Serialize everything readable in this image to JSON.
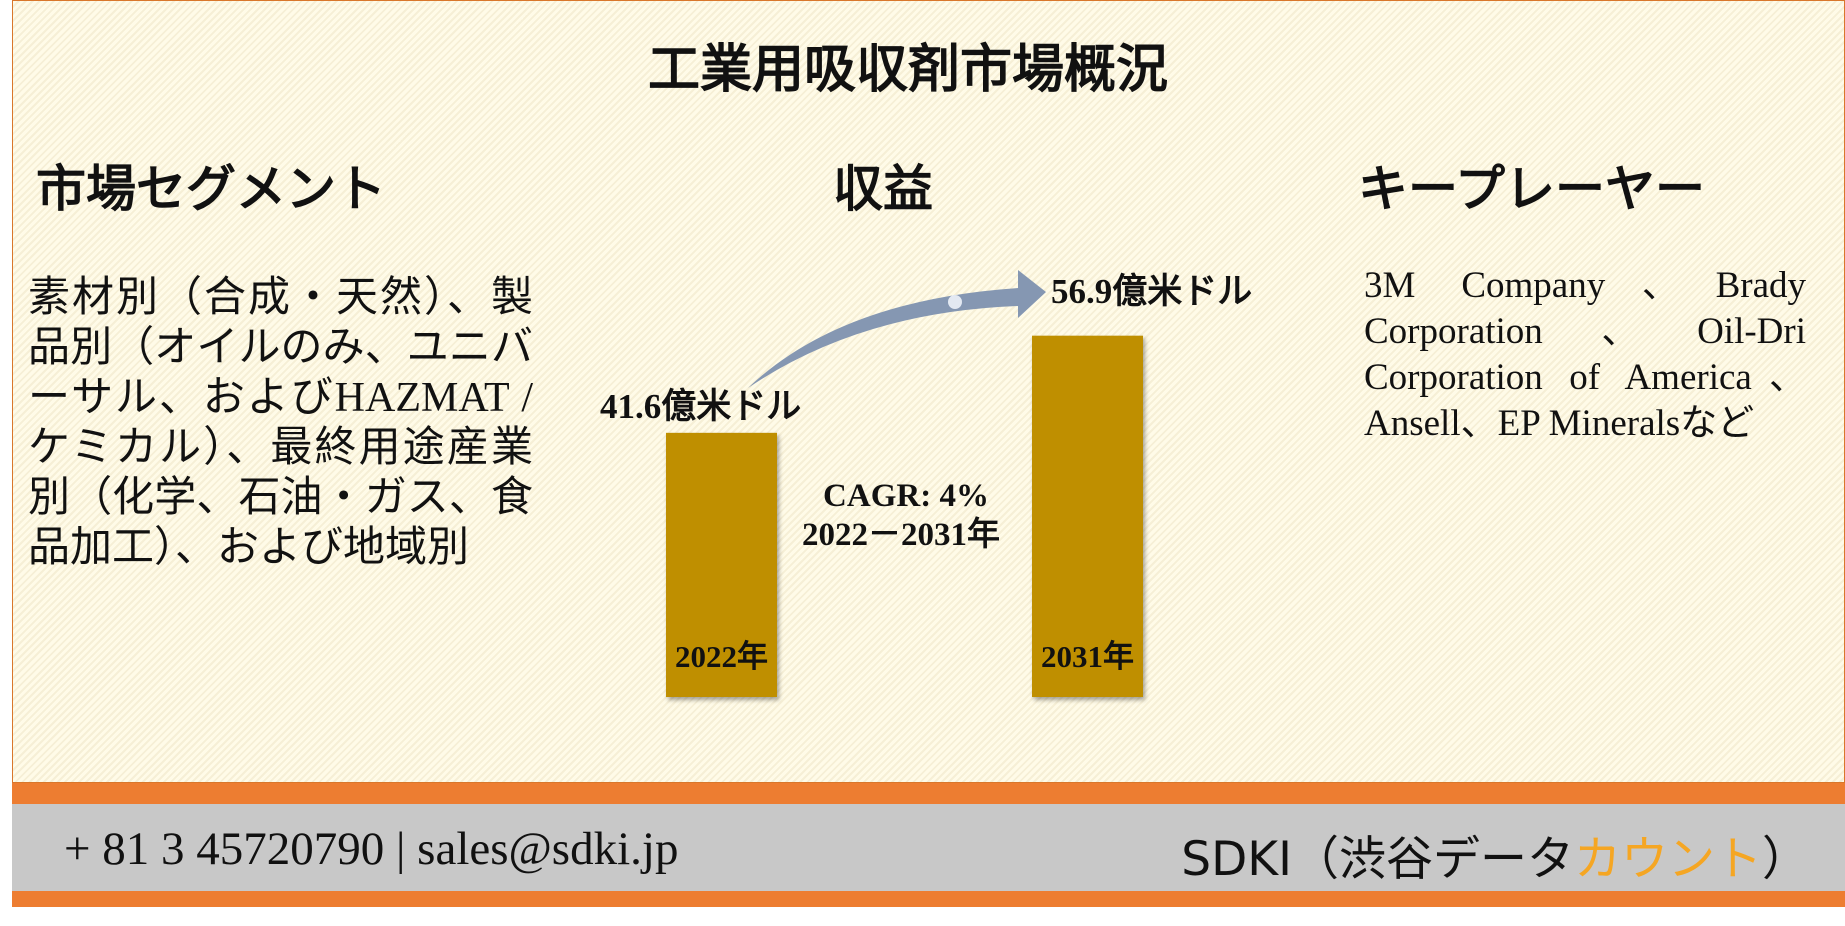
{
  "header": {
    "title": "工業用吸収剤市場概況"
  },
  "sections": {
    "segment_title": "市場セグメント",
    "revenue_title": "収益",
    "players_title": "キープレーヤー"
  },
  "segments_text": "素材別（合成・天然）、製品別（オイルのみ、ユニバーサル、およびHAZMAT /ケミカル）、最終用途産業別（化学、石油・ガス、食品加工）、および地域別",
  "revenue": {
    "categories": [
      "2022年",
      "2031年"
    ],
    "values": [
      41.6,
      56.9
    ],
    "value_labels": [
      "41.6億米ドル",
      "56.9億米ドル"
    ],
    "color": "#bf8f00",
    "cagr": "CAGR: 4%",
    "period": "2022－2031年"
  },
  "players_text": "3M Company、Brady Corporation、Oil-Dri Corporation of America、Ansell、EP Mineralsなど",
  "footer": {
    "contact": "+ 81 3 45720790 | sales@sdki.jp",
    "brand_prefix": "SDKI（渋谷データ",
    "brand_highlight": "カウント",
    "brand_suffix": "）"
  }
}
